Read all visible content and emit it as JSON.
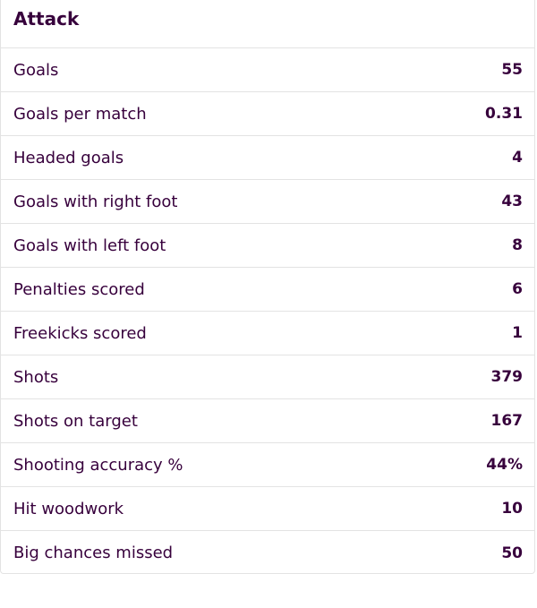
{
  "section": {
    "title": "Attack"
  },
  "stats": [
    {
      "label": "Goals",
      "value": "55"
    },
    {
      "label": "Goals per match",
      "value": "0.31"
    },
    {
      "label": "Headed goals",
      "value": "4"
    },
    {
      "label": "Goals with right foot",
      "value": "43"
    },
    {
      "label": "Goals with left foot",
      "value": "8"
    },
    {
      "label": "Penalties scored",
      "value": "6"
    },
    {
      "label": "Freekicks scored",
      "value": "1"
    },
    {
      "label": "Shots",
      "value": "379"
    },
    {
      "label": "Shots on target",
      "value": "167"
    },
    {
      "label": "Shooting accuracy %",
      "value": "44%"
    },
    {
      "label": "Hit woodwork",
      "value": "10"
    },
    {
      "label": "Big chances missed",
      "value": "50"
    }
  ],
  "colors": {
    "text": "#37003c",
    "border": "#e3e3e3",
    "background": "#ffffff"
  }
}
